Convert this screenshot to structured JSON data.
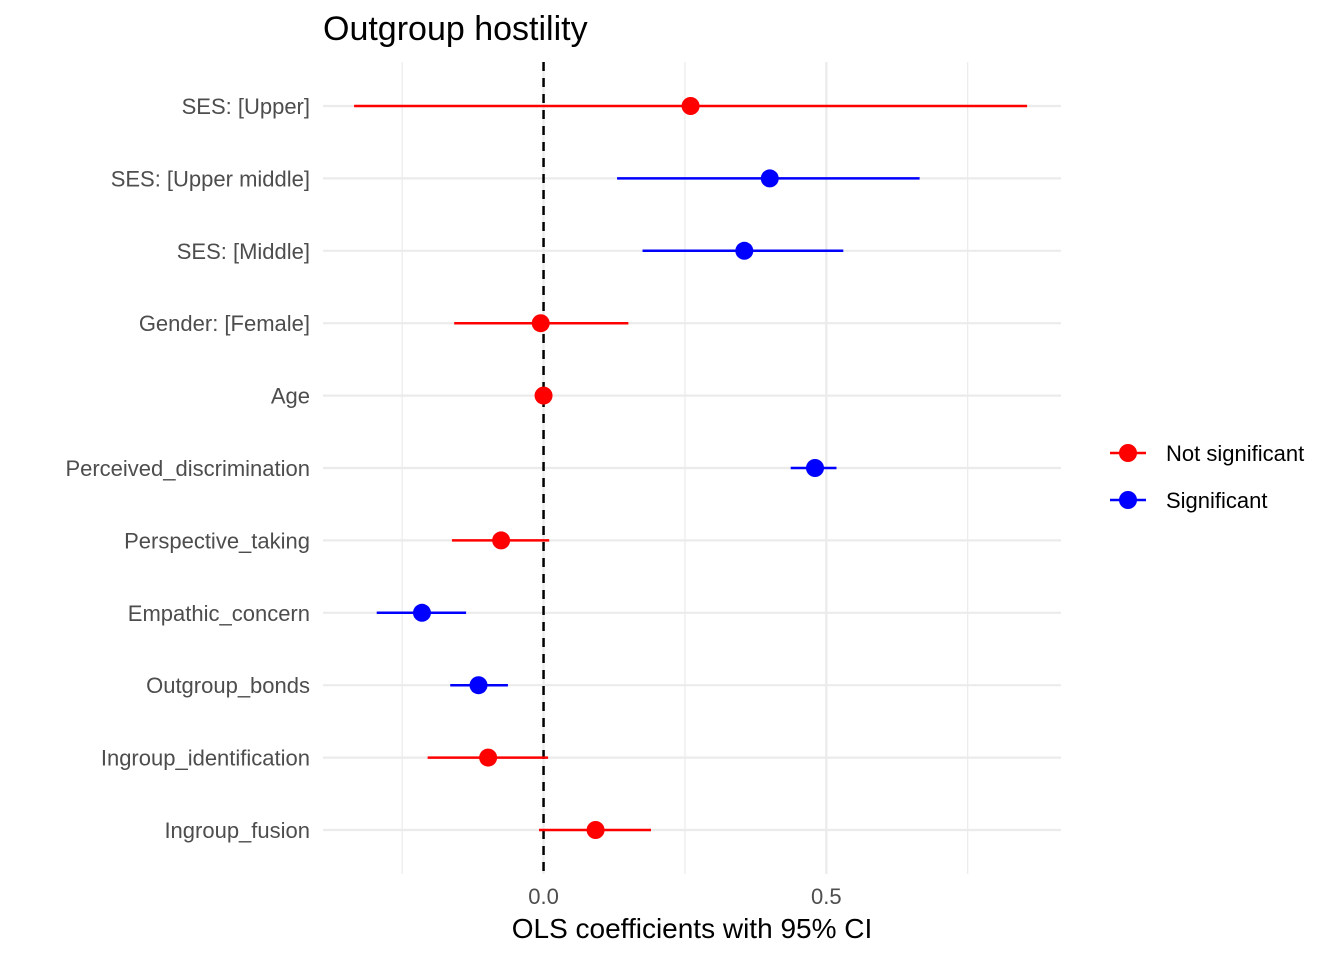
{
  "chart_data": {
    "type": "scatter",
    "title": "Outgroup hostility",
    "xlabel": "OLS coefficients with 95% CI",
    "ylabel": "",
    "xlim": [
      -0.39,
      0.915
    ],
    "x_ticks": [
      {
        "value": 0.0,
        "label": "0.0"
      },
      {
        "value": 0.5,
        "label": "0.5"
      }
    ],
    "minor_gridlines_x": [
      -0.25,
      0.25,
      0.75
    ],
    "reference_line": {
      "x": 0,
      "style": "dashed",
      "color": "#000000"
    },
    "grid": true,
    "legend_position": "right",
    "series": [
      {
        "name": "Not significant",
        "color": "#ff0000"
      },
      {
        "name": "Significant",
        "color": "#0000ff"
      }
    ],
    "terms": [
      {
        "label": "SES:  [Upper]",
        "estimate": 0.26,
        "ci_low": -0.335,
        "ci_high": 0.855,
        "group": "Not significant"
      },
      {
        "label": "SES:  [Upper middle]",
        "estimate": 0.4,
        "ci_low": 0.13,
        "ci_high": 0.665,
        "group": "Significant"
      },
      {
        "label": "SES:  [Middle]",
        "estimate": 0.355,
        "ci_low": 0.175,
        "ci_high": 0.53,
        "group": "Significant"
      },
      {
        "label": "Gender:  [Female]",
        "estimate": -0.005,
        "ci_low": -0.158,
        "ci_high": 0.15,
        "group": "Not significant"
      },
      {
        "label": "Age",
        "estimate": 0.0,
        "ci_low": -0.005,
        "ci_high": 0.005,
        "group": "Not significant"
      },
      {
        "label": "Perceived_discrimination",
        "estimate": 0.48,
        "ci_low": 0.437,
        "ci_high": 0.518,
        "group": "Significant"
      },
      {
        "label": "Perspective_taking",
        "estimate": -0.075,
        "ci_low": -0.162,
        "ci_high": 0.01,
        "group": "Not significant"
      },
      {
        "label": "Empathic_concern",
        "estimate": -0.215,
        "ci_low": -0.295,
        "ci_high": -0.137,
        "group": "Significant"
      },
      {
        "label": "Outgroup_bonds",
        "estimate": -0.115,
        "ci_low": -0.165,
        "ci_high": -0.063,
        "group": "Significant"
      },
      {
        "label": "Ingroup_identification",
        "estimate": -0.098,
        "ci_low": -0.205,
        "ci_high": 0.008,
        "group": "Not significant"
      },
      {
        "label": "Ingroup_fusion",
        "estimate": 0.092,
        "ci_low": -0.008,
        "ci_high": 0.19,
        "group": "Not significant"
      }
    ]
  }
}
